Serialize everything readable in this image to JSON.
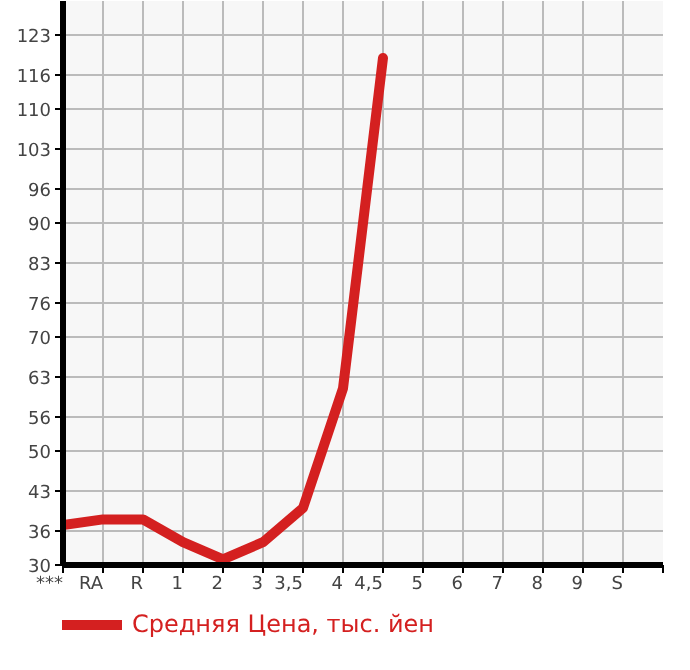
{
  "chart_data": {
    "type": "line",
    "categories": [
      "***",
      "RA",
      "R",
      "1",
      "2",
      "3",
      "3,5",
      "4",
      "4,5",
      "5",
      "6",
      "7",
      "8",
      "9",
      "S"
    ],
    "series": [
      {
        "name": "Средняя Цена, тыс. йен",
        "color": "#d42020",
        "values": [
          37,
          38,
          38,
          34,
          31,
          34,
          40,
          61,
          119,
          null,
          null,
          null,
          null,
          null,
          null
        ]
      }
    ],
    "ylim": [
      30,
      129
    ],
    "yticks": [
      30,
      36,
      43,
      50,
      56,
      63,
      70,
      76,
      83,
      90,
      96,
      103,
      110,
      116,
      123
    ],
    "grid": true,
    "legend": "bottom",
    "marker": "none",
    "line_style": "solid"
  }
}
